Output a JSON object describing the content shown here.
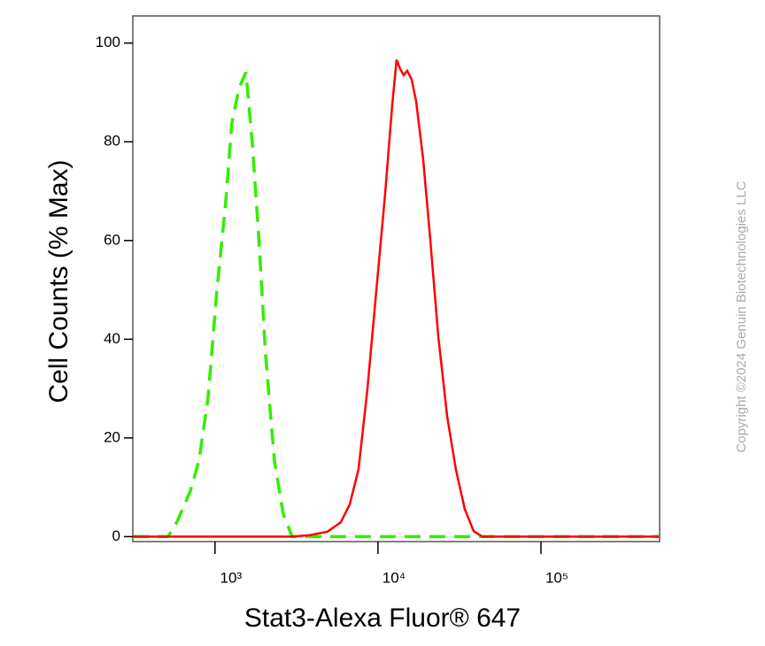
{
  "chart_data": {
    "type": "line",
    "xlabel": "Stat3-Alexa Fluor® 647",
    "ylabel": "Cell Counts (% Max)",
    "copyright": "Copyright ©2024 Genuin Biotechnologies LLC",
    "xscale": "log",
    "xlim": [
      313,
      535000
    ],
    "ylim": [
      -1,
      105.5
    ],
    "xticks": [
      {
        "value": 1000,
        "label": "10³"
      },
      {
        "value": 10000,
        "label": "10⁴"
      },
      {
        "value": 100000,
        "label": "10⁵"
      }
    ],
    "yticks": [
      0,
      20,
      40,
      60,
      80,
      100
    ],
    "series": [
      {
        "color": "#33ee00",
        "dashed": true,
        "x": [
          313,
          515,
          583,
          705,
          797,
          905,
          1025,
          1162,
          1268,
          1402,
          1549,
          1691,
          1845,
          2041,
          2313,
          2618,
          2972,
          7130,
          24950,
          530000
        ],
        "values": [
          0,
          0,
          2.9,
          9.2,
          15.4,
          28,
          49.6,
          67.5,
          83.7,
          90.8,
          94.1,
          80,
          62,
          37,
          15.4,
          4.7,
          0,
          0,
          0,
          0
        ]
      },
      {
        "color": "#ff0000",
        "dashed": false,
        "x": [
          313,
          2041,
          2972,
          3817,
          4898,
          5912,
          6700,
          7590,
          8610,
          9750,
          11050,
          12210,
          13000,
          13680,
          14380,
          15110,
          16100,
          17140,
          18930,
          20930,
          23440,
          26560,
          30080,
          34090,
          38650,
          43750,
          530000
        ],
        "values": [
          0,
          0,
          0,
          0.3,
          1,
          2.9,
          6.5,
          13.6,
          29.8,
          49.6,
          69.3,
          87.3,
          96.6,
          94.8,
          93.5,
          94.4,
          92.6,
          88.2,
          76.5,
          60.3,
          40.6,
          24.4,
          13.6,
          5.6,
          1.1,
          0,
          0
        ]
      }
    ]
  }
}
